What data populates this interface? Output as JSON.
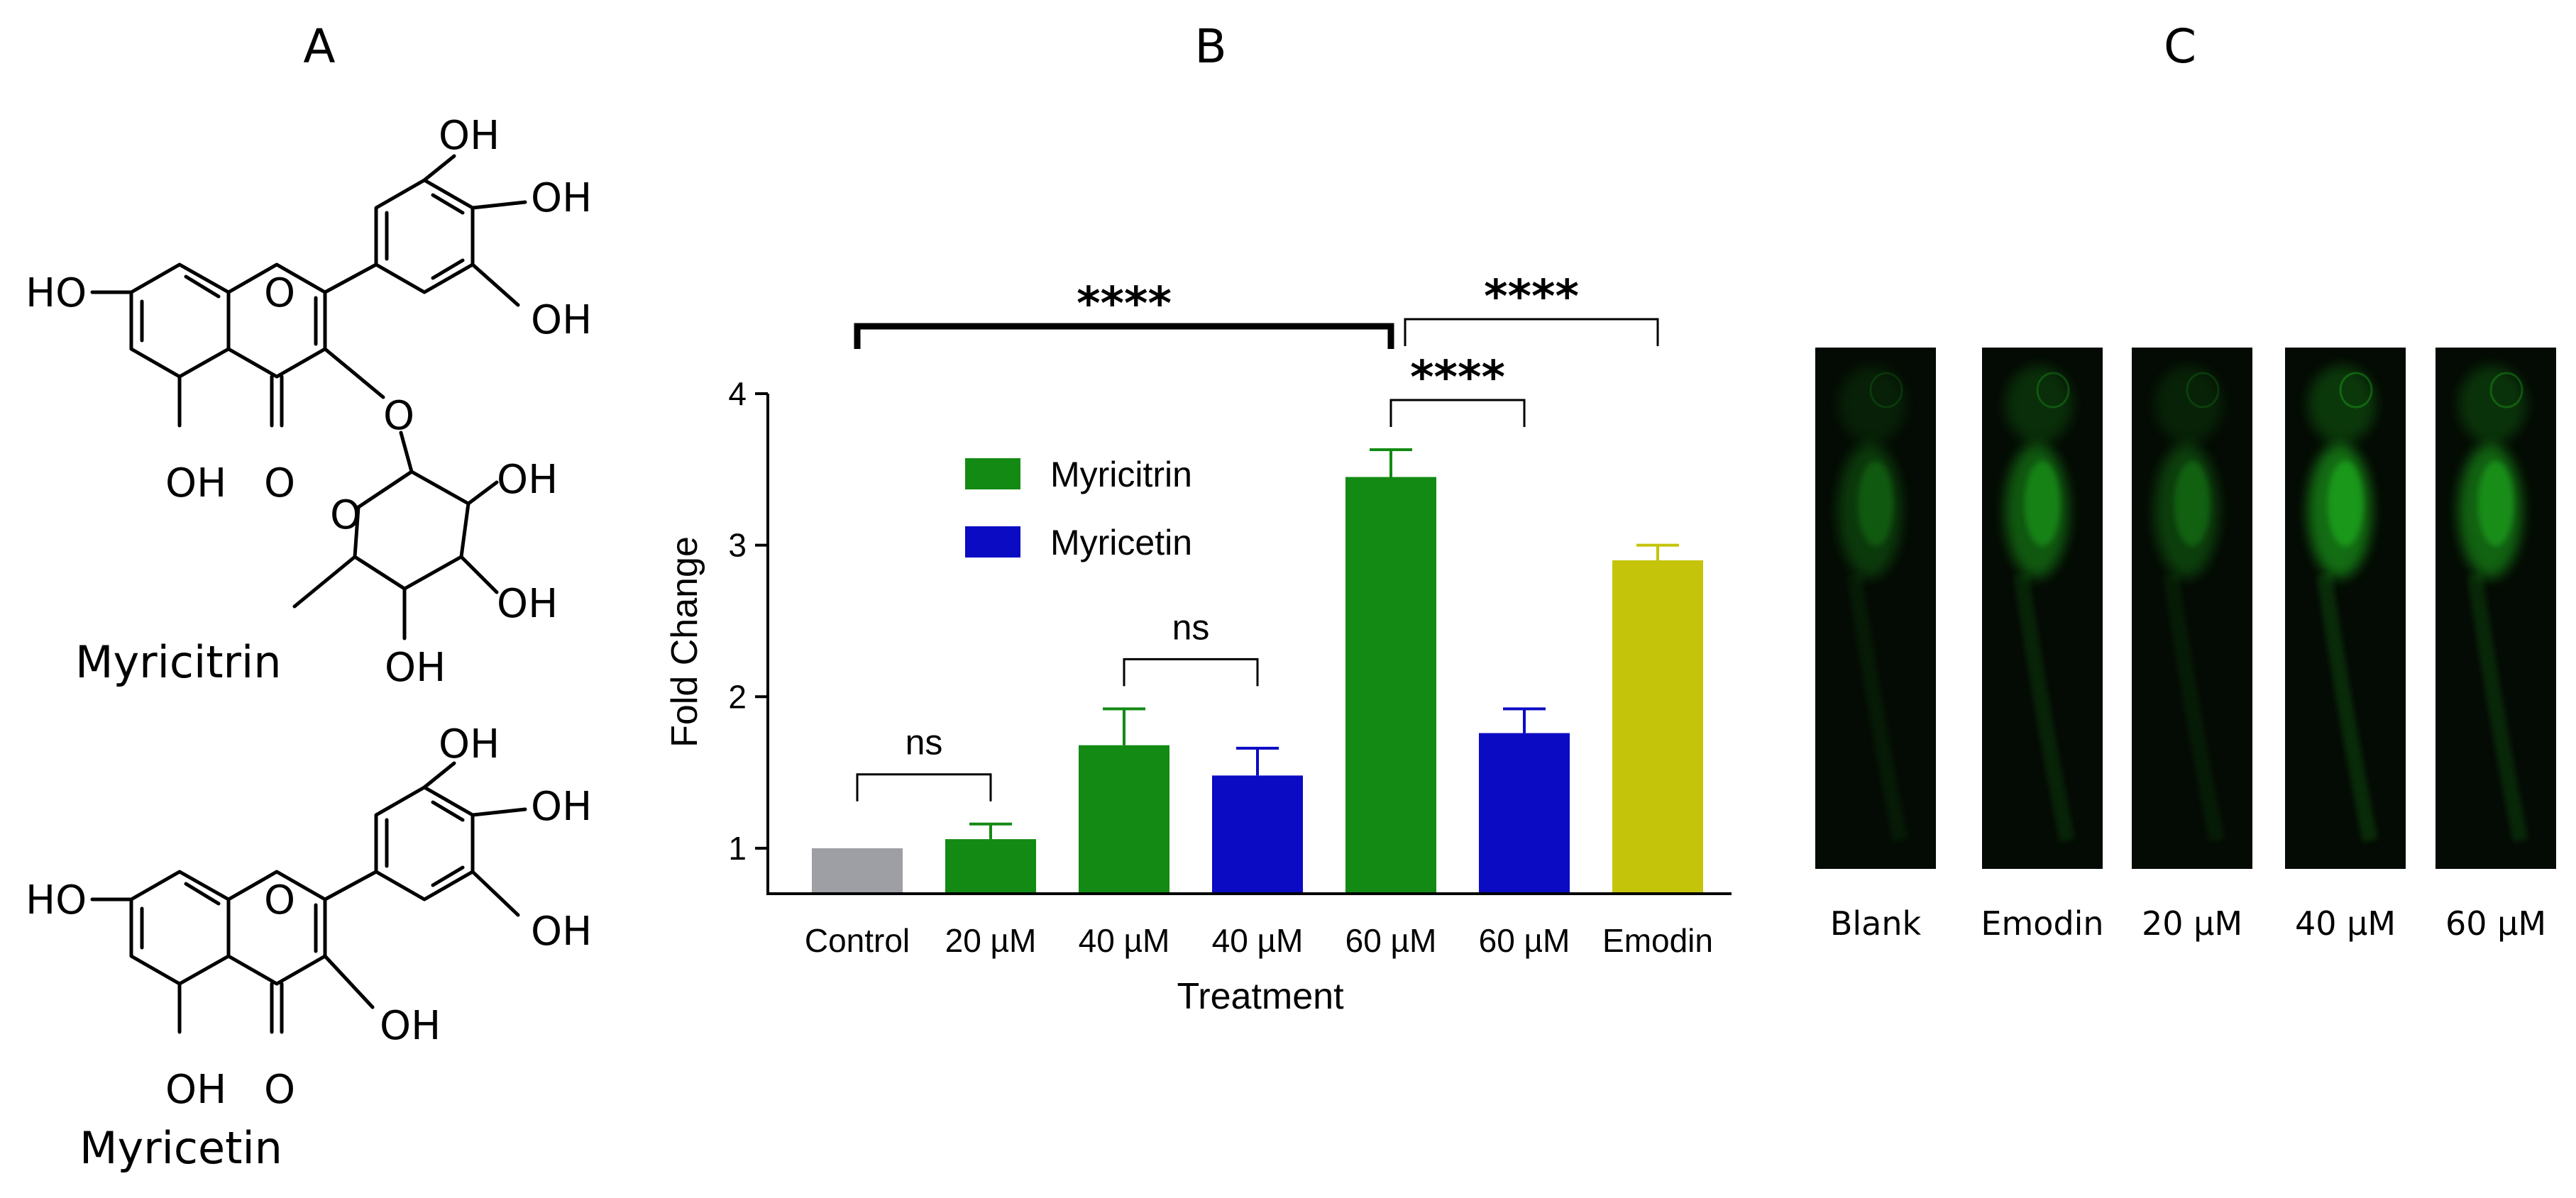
{
  "panels": {
    "a": {
      "letter": "A"
    },
    "b": {
      "letter": "B"
    },
    "c": {
      "letter": "C"
    }
  },
  "chemistry": {
    "myricitrin": {
      "name": "Myricitrin",
      "labels": [
        "OH",
        "OH",
        "OH",
        "HO",
        "O",
        "O",
        "OH",
        "O",
        "OH",
        "O",
        "OH",
        "OH"
      ]
    },
    "myricetin": {
      "name": "Myricetin",
      "labels": [
        "OH",
        "OH",
        "OH",
        "HO",
        "O",
        "OH",
        "OH",
        "O"
      ]
    }
  },
  "chart_data": {
    "type": "bar",
    "title": "",
    "xlabel": "Treatment",
    "ylabel": "Fold Change",
    "ylim": [
      0.7,
      4
    ],
    "yticks": [
      1,
      2,
      3,
      4
    ],
    "categories": [
      "Control",
      "20 µM",
      "40 µM",
      "40 µM",
      "60 µM",
      "60 µM",
      "Emodin"
    ],
    "values": [
      1.0,
      1.06,
      1.68,
      1.48,
      3.45,
      1.76,
      2.9
    ],
    "errors": [
      0,
      0.1,
      0.24,
      0.18,
      0.18,
      0.16,
      0.1
    ],
    "bar_series": [
      "control",
      "myricitrin",
      "myricitrin",
      "myricetin",
      "myricitrin",
      "myricetin",
      "emodin"
    ],
    "colors": {
      "control": "#9e9fa4",
      "myricitrin": "#138a13",
      "myricetin": "#0b0bc4",
      "emodin": "#c4c40a"
    },
    "legend": {
      "position": "upper-left-inside",
      "items": [
        {
          "name": "Myricitrin",
          "series": "myricitrin"
        },
        {
          "name": "Myricetin",
          "series": "myricetin"
        }
      ]
    },
    "significance": [
      {
        "from": 0,
        "to": 1,
        "label": "ns"
      },
      {
        "from": 2,
        "to": 3,
        "label": "ns"
      },
      {
        "from": 4,
        "to": 5,
        "label": "****"
      },
      {
        "from": 4,
        "to": 6,
        "label": "****"
      },
      {
        "from": 0,
        "to": 4,
        "label": "****"
      }
    ]
  },
  "fish_panel": {
    "labels": [
      "Blank",
      "Emodin",
      "20 µM",
      "40 µM",
      "60 µM"
    ],
    "fluorescence_color": "#22c822"
  }
}
